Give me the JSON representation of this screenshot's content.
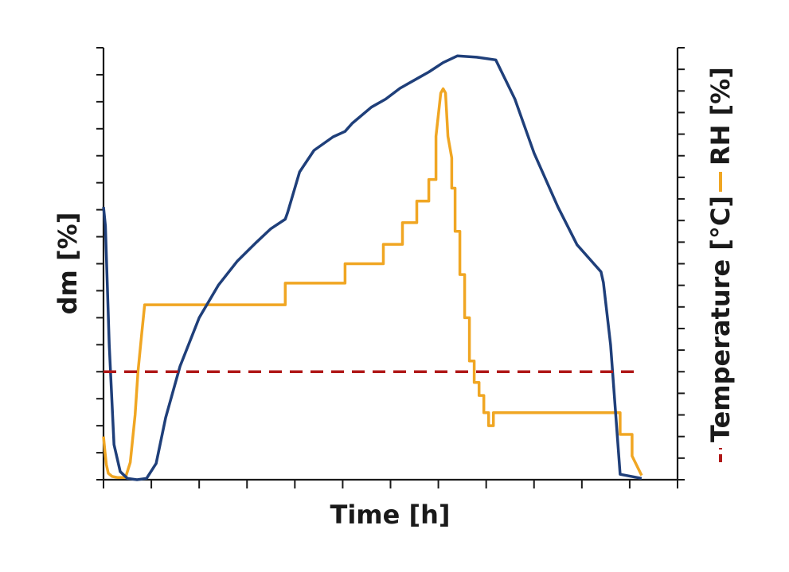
{
  "chart_data": {
    "type": "line",
    "title": "",
    "xlabel": "Time [h]",
    "ylabel_left": "dm [%]",
    "ylabel_right": {
      "temperature_label": "Temperature [°C]",
      "rh_label": "RH [%]"
    },
    "grid": false,
    "legend": "embedded in right axis label",
    "x_ticks": 12,
    "y_left_ticks": 16,
    "y_right_ticks": 20,
    "series": [
      {
        "name": "dm [%]",
        "axis": "left",
        "color": "#1f3f7a",
        "style": "solid",
        "x": [
          0,
          0.04,
          0.12,
          0.22,
          0.35,
          0.5,
          0.7,
          0.9,
          1.1,
          1.3,
          1.6,
          2.0,
          2.4,
          2.8,
          3.2,
          3.5,
          3.8,
          3.85,
          4.1,
          4.4,
          4.8,
          5.05,
          5.2,
          5.6,
          5.9,
          6.2,
          6.6,
          6.8,
          7.1,
          7.4,
          7.8,
          8.2,
          8.6,
          9.0,
          9.5,
          9.9,
          10.2,
          10.4,
          10.45,
          10.6,
          10.8,
          11.25
        ],
        "y": [
          10.1,
          9.4,
          5.0,
          1.3,
          0.3,
          0.05,
          0.0,
          0.05,
          0.6,
          2.3,
          4.2,
          6.0,
          7.2,
          8.1,
          8.8,
          9.3,
          9.65,
          9.9,
          11.4,
          12.2,
          12.7,
          12.9,
          13.2,
          13.8,
          14.1,
          14.5,
          14.9,
          15.1,
          15.45,
          15.7,
          15.65,
          15.55,
          14.1,
          12.1,
          10.1,
          8.7,
          8.1,
          7.7,
          7.3,
          5.0,
          0.2,
          0.05
        ]
      },
      {
        "name": "RH [%]",
        "axis": "right",
        "color": "#f0a623",
        "style": "solid",
        "x": [
          0,
          0.03,
          0.06,
          0.1,
          0.18,
          0.3,
          0.38,
          0.46,
          0.56,
          0.66,
          0.72,
          0.8,
          0.86,
          3.8,
          3.8,
          5.05,
          5.05,
          5.85,
          5.85,
          6.25,
          6.25,
          6.55,
          6.55,
          6.8,
          6.8,
          6.95,
          6.95,
          7.05,
          7.1,
          7.15,
          7.2,
          7.28,
          7.28,
          7.35,
          7.35,
          7.45,
          7.45,
          7.55,
          7.55,
          7.65,
          7.65,
          7.75,
          7.75,
          7.85,
          7.85,
          7.95,
          7.95,
          8.05,
          8.05,
          8.15,
          8.15,
          10.8,
          10.8,
          11.05,
          11.05,
          11.25
        ],
        "y": [
          2.0,
          1.3,
          0.7,
          0.3,
          0.15,
          0.1,
          0.1,
          0.1,
          0.8,
          3.0,
          5.0,
          6.8,
          8.1,
          8.1,
          9.1,
          9.1,
          10.0,
          10.0,
          10.9,
          10.9,
          11.9,
          11.9,
          12.9,
          12.9,
          13.9,
          13.9,
          15.9,
          17.9,
          18.1,
          17.9,
          15.9,
          14.9,
          13.5,
          13.5,
          11.5,
          11.5,
          9.5,
          9.5,
          7.5,
          7.5,
          5.5,
          5.5,
          4.5,
          4.5,
          3.9,
          3.9,
          3.1,
          3.1,
          2.5,
          2.5,
          3.1,
          3.1,
          2.1,
          2.1,
          1.1,
          0.2
        ]
      },
      {
        "name": "Temperature [°C]",
        "axis": "right",
        "color": "#b01818",
        "style": "dashed",
        "x": [
          0,
          11.25
        ],
        "y": [
          5.0,
          5.0
        ]
      }
    ],
    "xlim": [
      0,
      12
    ],
    "ylim_left": [
      0,
      16
    ],
    "ylim_right": [
      0,
      20
    ]
  }
}
